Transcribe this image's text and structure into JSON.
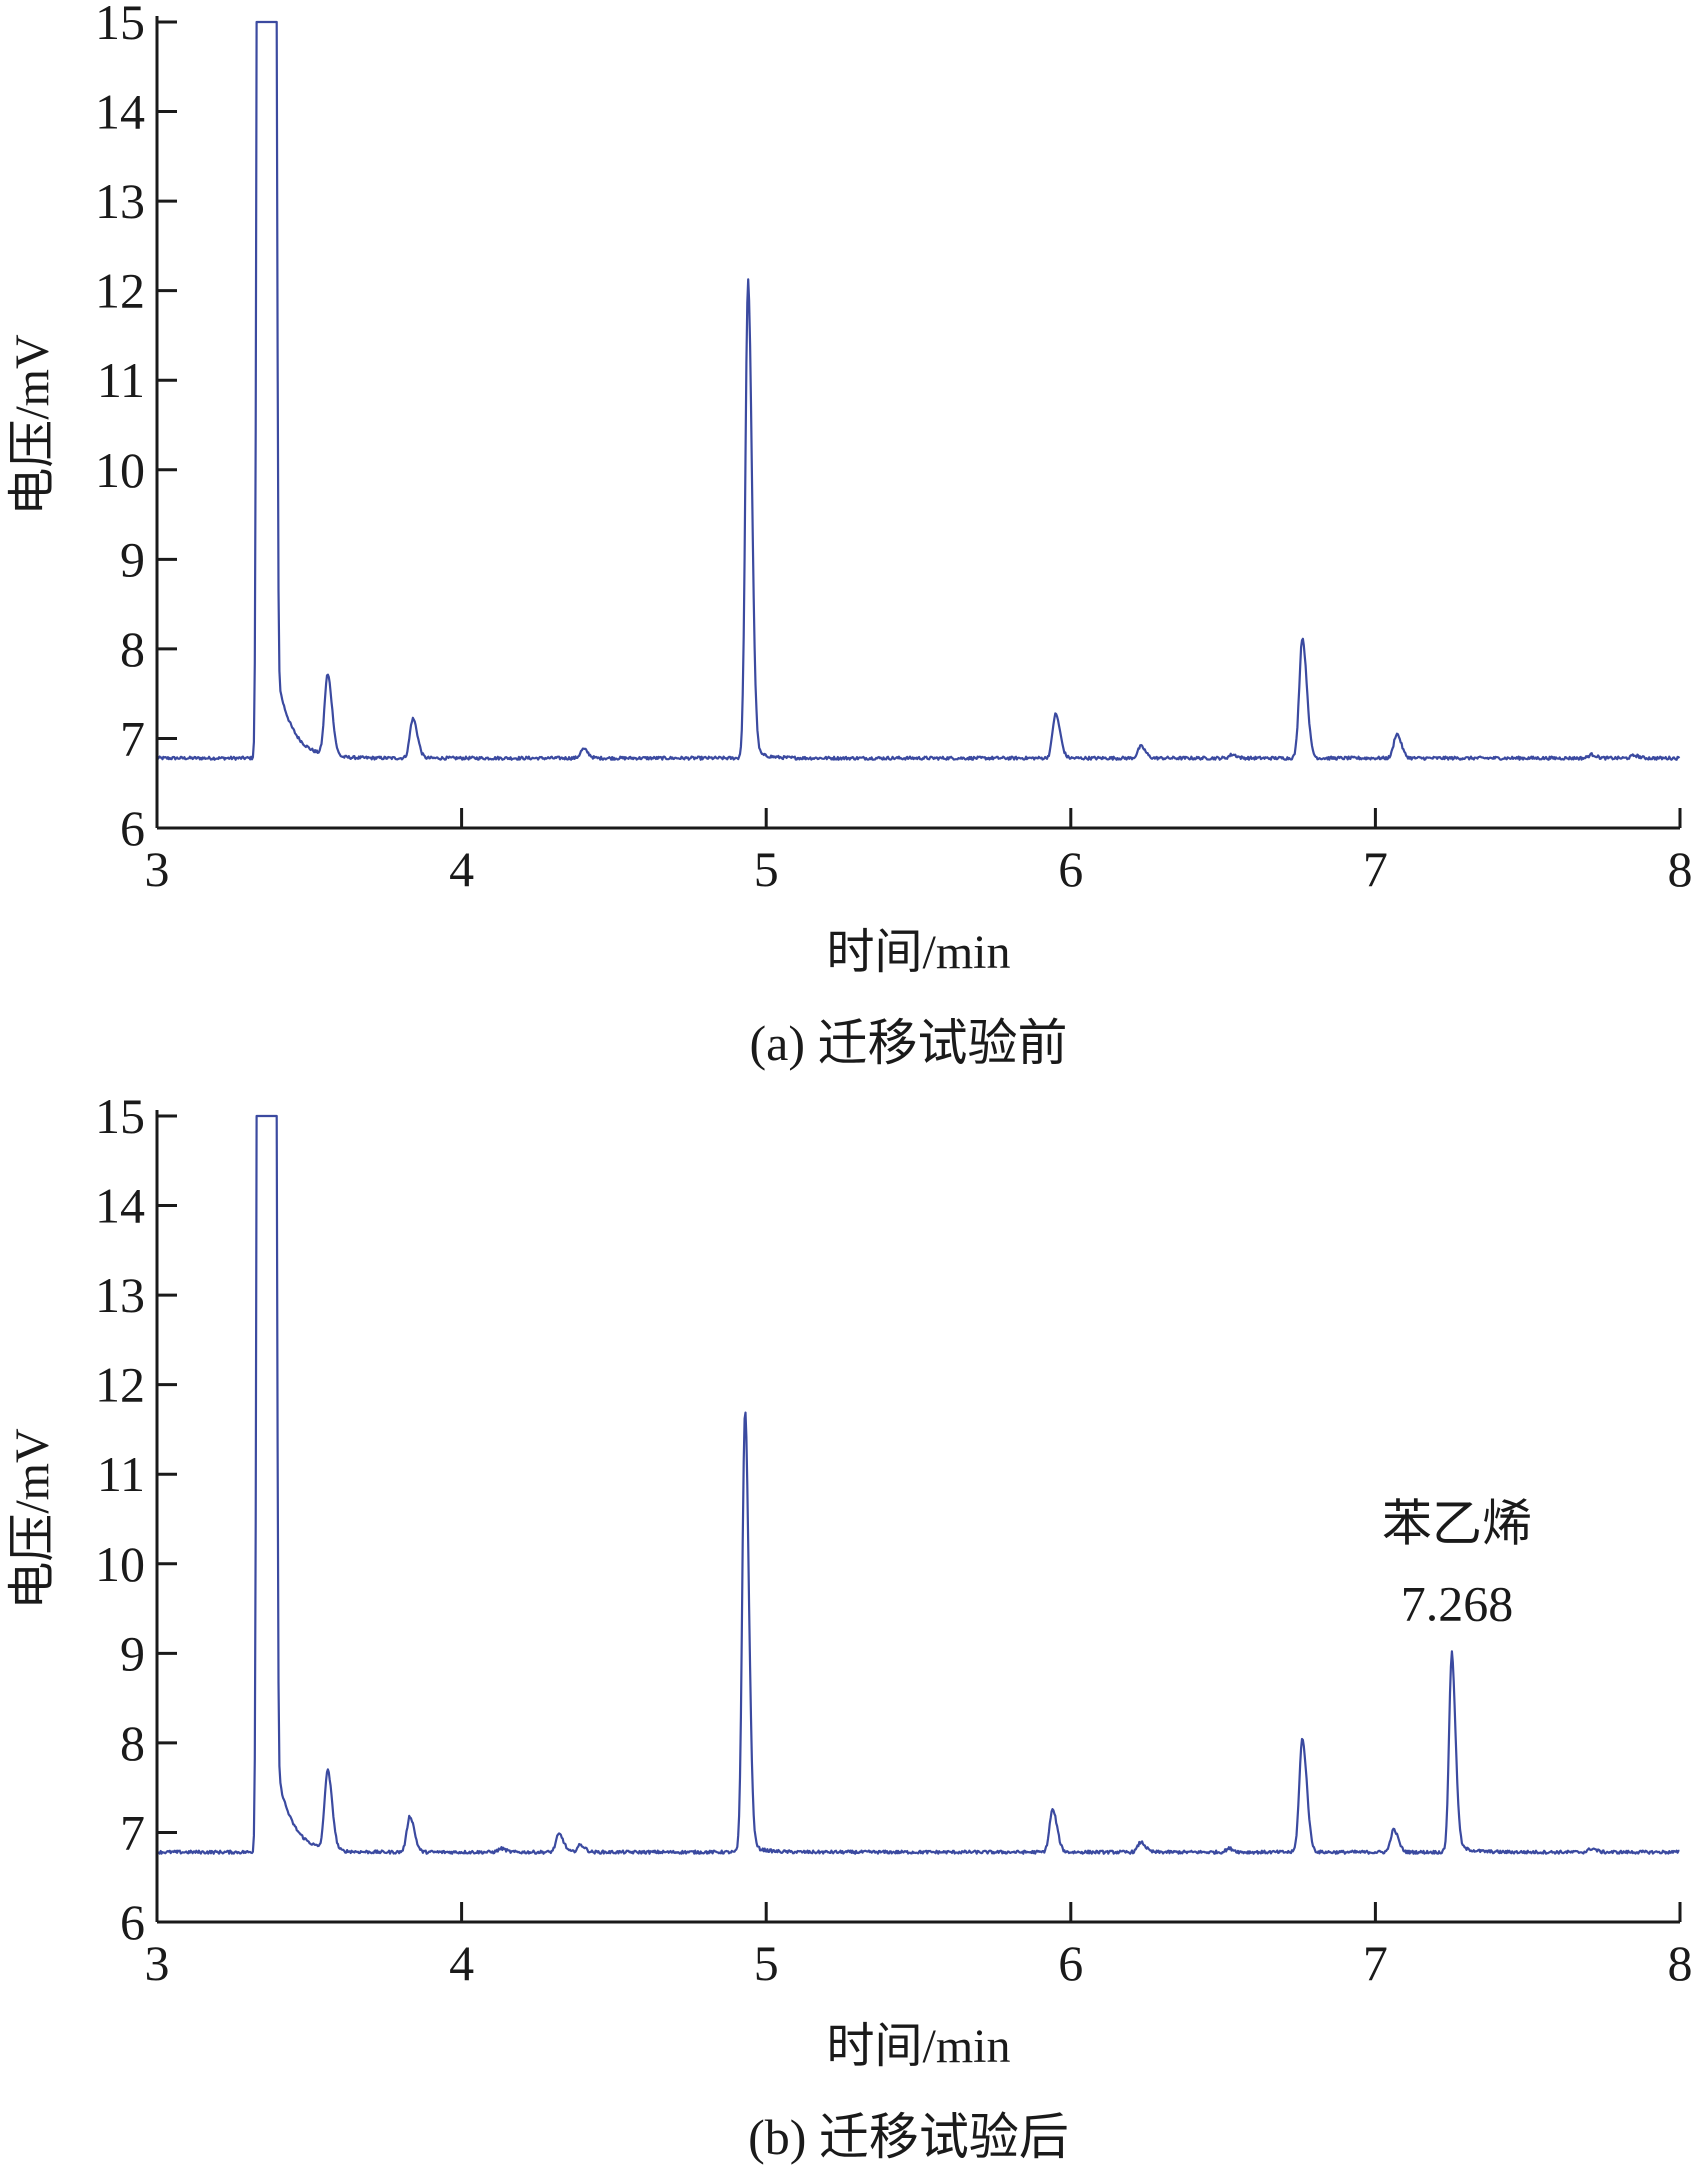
{
  "chart_data": [
    {
      "type": "line",
      "caption": "(a) 迁移试验前",
      "xlabel": "时间/min",
      "ylabel": "电压/mV",
      "xlim": [
        3,
        8
      ],
      "ylim": [
        6,
        15
      ],
      "xticks": [
        "3",
        "4",
        "5",
        "6",
        "7",
        "8"
      ],
      "yticks": [
        "6",
        "7",
        "8",
        "9",
        "10",
        "11",
        "12",
        "13",
        "14",
        "15"
      ],
      "baseline": 6.78,
      "series": [
        {
          "color": "#3b4aa0",
          "peaks": [
            {
              "x": 3.36,
              "y": 15.0
            },
            {
              "x": 3.56,
              "y": 7.68
            },
            {
              "x": 3.84,
              "y": 7.22
            },
            {
              "x": 4.4,
              "y": 6.88
            },
            {
              "x": 4.94,
              "y": 12.02
            },
            {
              "x": 5.95,
              "y": 7.27
            },
            {
              "x": 6.23,
              "y": 6.91
            },
            {
              "x": 6.53,
              "y": 6.82
            },
            {
              "x": 6.76,
              "y": 8.12
            },
            {
              "x": 7.07,
              "y": 7.05
            },
            {
              "x": 7.71,
              "y": 6.82
            },
            {
              "x": 7.85,
              "y": 6.81
            }
          ]
        }
      ],
      "annotations": []
    },
    {
      "type": "line",
      "caption": "(b) 迁移试验后",
      "xlabel": "时间/min",
      "ylabel": "电压/mV",
      "xlim": [
        3,
        8
      ],
      "ylim": [
        6,
        15
      ],
      "xticks": [
        "3",
        "4",
        "5",
        "6",
        "7",
        "8"
      ],
      "yticks": [
        "6",
        "7",
        "8",
        "9",
        "10",
        "11",
        "12",
        "13",
        "14",
        "15"
      ],
      "baseline": 6.78,
      "series": [
        {
          "color": "#3b4aa0",
          "peaks": [
            {
              "x": 3.36,
              "y": 15.0
            },
            {
              "x": 3.56,
              "y": 7.66
            },
            {
              "x": 3.83,
              "y": 7.18
            },
            {
              "x": 4.13,
              "y": 6.82
            },
            {
              "x": 4.32,
              "y": 6.98
            },
            {
              "x": 4.39,
              "y": 6.86
            },
            {
              "x": 4.93,
              "y": 11.65
            },
            {
              "x": 5.94,
              "y": 7.25
            },
            {
              "x": 6.23,
              "y": 6.89
            },
            {
              "x": 6.52,
              "y": 6.82
            },
            {
              "x": 6.76,
              "y": 8.04
            },
            {
              "x": 7.06,
              "y": 7.03
            },
            {
              "x": 7.25,
              "y": 8.9
            },
            {
              "x": 7.71,
              "y": 6.82
            }
          ]
        }
      ],
      "annotations": [
        {
          "name": "苯乙烯",
          "value": "7.268",
          "x": 7.268,
          "y": 8.9
        }
      ]
    }
  ]
}
